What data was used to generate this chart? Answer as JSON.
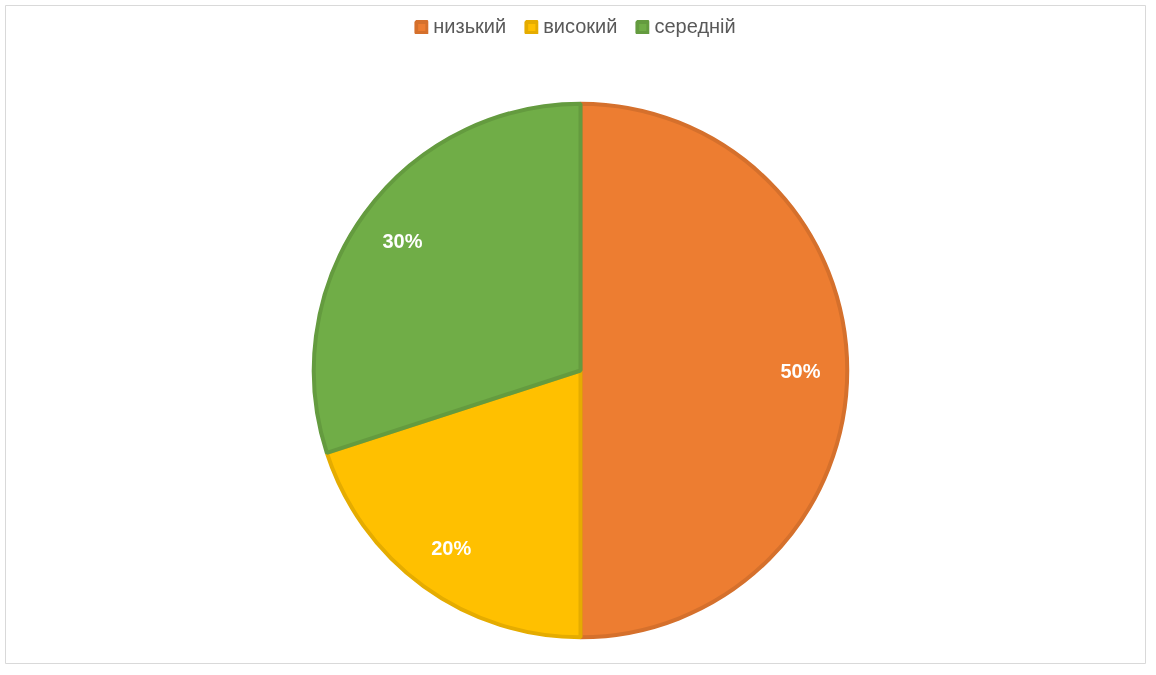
{
  "chart_data": {
    "type": "pie",
    "categories": [
      "низький",
      "високий",
      "середній"
    ],
    "values": [
      50,
      20,
      30
    ],
    "colors": [
      "#ed7d31",
      "#ffc000",
      "#70ad47"
    ],
    "value_labels": [
      "50%",
      "20%",
      "30%"
    ],
    "legend": "top"
  }
}
